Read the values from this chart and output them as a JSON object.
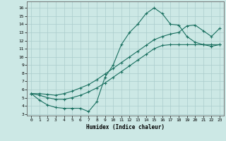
{
  "xlabel": "Humidex (Indice chaleur)",
  "xlim": [
    -0.5,
    23.5
  ],
  "ylim": [
    2.8,
    16.8
  ],
  "xticks": [
    0,
    1,
    2,
    3,
    4,
    5,
    6,
    7,
    8,
    9,
    10,
    11,
    12,
    13,
    14,
    15,
    16,
    17,
    18,
    19,
    20,
    21,
    22,
    23
  ],
  "yticks": [
    3,
    4,
    5,
    6,
    7,
    8,
    9,
    10,
    11,
    12,
    13,
    14,
    15,
    16
  ],
  "bg_color": "#cce8e5",
  "grid_color": "#aacccc",
  "line_color": "#1a7060",
  "line1_x": [
    0,
    1,
    2,
    3,
    4,
    5,
    6,
    7,
    8,
    9,
    10,
    11,
    12,
    13,
    14,
    15,
    16,
    17,
    18,
    19,
    20,
    21,
    22,
    23
  ],
  "line1_y": [
    5.5,
    4.7,
    4.1,
    3.8,
    3.7,
    3.7,
    3.7,
    3.3,
    4.5,
    7.5,
    9.0,
    11.5,
    13.0,
    14.0,
    15.3,
    16.0,
    15.3,
    14.0,
    13.9,
    12.5,
    11.8,
    11.5,
    11.3,
    11.5
  ],
  "line2_x": [
    0,
    1,
    2,
    3,
    4,
    5,
    6,
    7,
    8,
    9,
    10,
    11,
    12,
    13,
    14,
    15,
    16,
    17,
    18,
    19,
    20,
    21,
    22,
    23
  ],
  "line2_y": [
    5.5,
    5.5,
    5.4,
    5.3,
    5.5,
    5.8,
    6.2,
    6.6,
    7.2,
    7.9,
    8.6,
    9.3,
    10.0,
    10.7,
    11.4,
    12.1,
    12.5,
    12.8,
    13.0,
    13.8,
    13.9,
    13.2,
    12.5,
    13.5
  ],
  "line3_x": [
    0,
    1,
    2,
    3,
    4,
    5,
    6,
    7,
    8,
    9,
    10,
    11,
    12,
    13,
    14,
    15,
    16,
    17,
    18,
    19,
    20,
    21,
    22,
    23
  ],
  "line3_y": [
    5.5,
    5.3,
    5.0,
    4.8,
    4.8,
    5.0,
    5.3,
    5.7,
    6.2,
    6.8,
    7.5,
    8.2,
    8.9,
    9.6,
    10.3,
    11.0,
    11.4,
    11.5,
    11.5,
    11.5,
    11.5,
    11.5,
    11.5,
    11.5
  ]
}
